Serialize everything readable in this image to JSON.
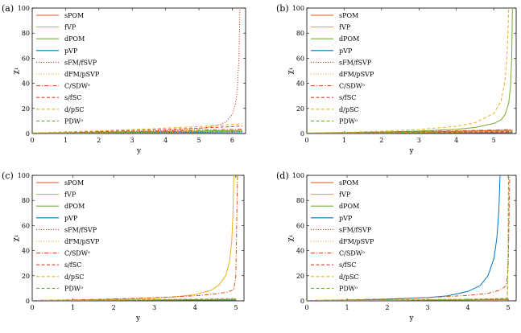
{
  "chart_data": [
    {
      "panel_label": "(a)",
      "type": "line",
      "xlabel": "y",
      "ylabel": "χ₁",
      "xlim": [
        0,
        6.4
      ],
      "ylim": [
        0,
        100
      ],
      "x_ticks": [
        0,
        1,
        2,
        3,
        4,
        5,
        6
      ],
      "y_ticks": [
        0,
        20,
        40,
        60,
        80,
        100
      ],
      "legend_position": "top-left",
      "series": [
        {
          "name": "sPOM",
          "color": "#d95319",
          "dash": "solid",
          "x": [
            0,
            6.3
          ],
          "y": [
            0.3,
            0.3
          ]
        },
        {
          "name": "fVP",
          "color": "#edb120",
          "dash": "solid",
          "x": [
            0,
            1,
            2,
            3,
            4,
            5,
            6,
            6.3
          ],
          "y": [
            0.2,
            0.4,
            0.6,
            0.8,
            1.0,
            1.3,
            1.6,
            1.8
          ]
        },
        {
          "name": "dPOM",
          "color": "#77ac30",
          "dash": "solid",
          "x": [
            0,
            1,
            2,
            3,
            4,
            5,
            6,
            6.3
          ],
          "y": [
            0.2,
            0.5,
            0.9,
            1.2,
            1.6,
            2.0,
            2.4,
            2.6
          ]
        },
        {
          "name": "pVP",
          "color": "#0072bd",
          "dash": "solid",
          "x": [
            0,
            1,
            2,
            3,
            4,
            5,
            6,
            6.3
          ],
          "y": [
            0.2,
            0.3,
            0.5,
            0.6,
            0.8,
            1.0,
            1.2,
            1.3
          ]
        },
        {
          "name": "sFM/fSVP",
          "color": "#e8402a",
          "dash": "dot",
          "x": [
            0,
            1,
            2,
            3,
            4,
            5,
            5.5,
            5.8,
            6.0,
            6.1,
            6.15,
            6.2,
            6.23
          ],
          "y": [
            0.3,
            0.6,
            1.0,
            1.6,
            2.5,
            4.0,
            6.0,
            9.0,
            15,
            24,
            35,
            60,
            100
          ]
        },
        {
          "name": "dFM/pSVP",
          "color": "#edb120",
          "dash": "dot",
          "x": [
            0,
            2,
            4,
            6,
            6.3
          ],
          "y": [
            0.2,
            0.5,
            0.9,
            1.3,
            1.4
          ]
        },
        {
          "name": "C/SDWᵒ",
          "color": "#d95319",
          "dash": "dashdot",
          "x": [
            0,
            1,
            2,
            3,
            4,
            5,
            6,
            6.3
          ],
          "y": [
            0.3,
            0.7,
            1.1,
            1.6,
            2.1,
            2.7,
            3.3,
            3.5
          ]
        },
        {
          "name": "s/fSC",
          "color": "#e8402a",
          "dash": "dash",
          "x": [
            0,
            1,
            2,
            3,
            4,
            5,
            6,
            6.3
          ],
          "y": [
            0.4,
            0.9,
            1.6,
            2.4,
            3.3,
            4.3,
            5.5,
            6.0
          ]
        },
        {
          "name": "d/pSC",
          "color": "#edb120",
          "dash": "dash",
          "x": [
            0,
            1,
            2,
            3,
            4,
            5,
            6,
            6.3
          ],
          "y": [
            0.5,
            1.3,
            2.2,
            3.2,
            4.3,
            5.6,
            7.2,
            7.8
          ]
        },
        {
          "name": "PDWᵒ",
          "color": "#77ac30",
          "dash": "dash",
          "x": [
            0,
            2,
            4,
            6,
            6.3
          ],
          "y": [
            0.3,
            0.8,
            1.4,
            2.0,
            2.2
          ]
        }
      ]
    },
    {
      "panel_label": "(b)",
      "type": "line",
      "xlabel": "y",
      "ylabel": "χ₁",
      "xlim": [
        0,
        5.6
      ],
      "ylim": [
        0,
        100
      ],
      "x_ticks": [
        0,
        1,
        2,
        3,
        4,
        5
      ],
      "y_ticks": [
        0,
        20,
        40,
        60,
        80,
        100
      ],
      "legend_position": "top-left",
      "series": [
        {
          "name": "sPOM",
          "color": "#d95319",
          "dash": "solid",
          "x": [
            0,
            1,
            2,
            3,
            4,
            5,
            5.5
          ],
          "y": [
            0.2,
            0.5,
            0.9,
            1.3,
            1.8,
            2.3,
            2.6
          ]
        },
        {
          "name": "fVP",
          "color": "#edb120",
          "dash": "solid",
          "x": [
            0,
            1,
            2,
            3,
            4,
            5,
            5.5
          ],
          "y": [
            0.2,
            0.4,
            0.7,
            1.0,
            1.3,
            1.6,
            1.8
          ]
        },
        {
          "name": "dPOM",
          "color": "#77ac30",
          "dash": "solid",
          "x": [
            0,
            1,
            2,
            3,
            4,
            4.5,
            5.0,
            5.2,
            5.3,
            5.4,
            5.45,
            5.48,
            5.5
          ],
          "y": [
            0.3,
            0.7,
            1.2,
            2.0,
            3.4,
            4.8,
            8.0,
            11,
            15,
            24,
            38,
            60,
            100
          ]
        },
        {
          "name": "pVP",
          "color": "#0072bd",
          "dash": "solid",
          "x": [
            0,
            2,
            4,
            5.5
          ],
          "y": [
            0.1,
            0.3,
            0.5,
            0.7
          ]
        },
        {
          "name": "sFM/fSVP",
          "color": "#e8402a",
          "dash": "dot",
          "x": [
            0,
            2,
            4,
            5.5
          ],
          "y": [
            0.2,
            0.4,
            0.7,
            1.0
          ]
        },
        {
          "name": "dFM/pSVP",
          "color": "#edb120",
          "dash": "dot",
          "x": [
            0,
            2,
            4,
            5.5
          ],
          "y": [
            0.2,
            0.5,
            0.9,
            1.2
          ]
        },
        {
          "name": "C/SDWᵒ",
          "color": "#d95319",
          "dash": "dashdot",
          "x": [
            0,
            1,
            2,
            3,
            4,
            5,
            5.5
          ],
          "y": [
            0.3,
            0.7,
            1.1,
            1.6,
            2.2,
            2.8,
            3.2
          ]
        },
        {
          "name": "s/fSC",
          "color": "#e8402a",
          "dash": "dash",
          "x": [
            0,
            2,
            4,
            5.5
          ],
          "y": [
            0.2,
            0.6,
            1.0,
            1.3
          ]
        },
        {
          "name": "d/pSC",
          "color": "#edb120",
          "dash": "dash",
          "x": [
            0,
            1,
            2,
            3,
            4,
            4.5,
            5.0,
            5.2,
            5.3,
            5.35,
            5.38,
            5.4
          ],
          "y": [
            0.4,
            1.0,
            1.9,
            3.2,
            5.8,
            8.5,
            16,
            26,
            42,
            60,
            80,
            100
          ]
        },
        {
          "name": "PDWᵒ",
          "color": "#77ac30",
          "dash": "dash",
          "x": [
            0,
            2,
            4,
            5.5
          ],
          "y": [
            0.3,
            0.8,
            1.4,
            1.8
          ]
        }
      ]
    },
    {
      "panel_label": "(c)",
      "type": "line",
      "xlabel": "y",
      "ylabel": "χ₁",
      "xlim": [
        0,
        5.2
      ],
      "ylim": [
        0,
        100
      ],
      "x_ticks": [
        0,
        1,
        2,
        3,
        4,
        5
      ],
      "y_ticks": [
        0,
        20,
        40,
        60,
        80,
        100
      ],
      "legend_position": "top-left",
      "series": [
        {
          "name": "sPOM",
          "color": "#d95319",
          "dash": "solid",
          "x": [
            0,
            2,
            4,
            5.0
          ],
          "y": [
            0.2,
            0.5,
            0.9,
            1.1
          ]
        },
        {
          "name": "fVP",
          "color": "#edb120",
          "dash": "solid",
          "x": [
            0,
            1,
            2,
            3,
            3.5,
            4.0,
            4.4,
            4.6,
            4.75,
            4.85,
            4.9,
            4.93,
            4.95
          ],
          "y": [
            0.2,
            0.6,
            1.2,
            2.2,
            3.2,
            5.0,
            8.5,
            13,
            20,
            32,
            48,
            70,
            100
          ]
        },
        {
          "name": "dPOM",
          "color": "#77ac30",
          "dash": "solid",
          "x": [
            0,
            2,
            4,
            5.0
          ],
          "y": [
            0.2,
            0.5,
            0.9,
            1.1
          ]
        },
        {
          "name": "pVP",
          "color": "#0072bd",
          "dash": "solid",
          "x": [
            0,
            2,
            4,
            5.0
          ],
          "y": [
            0.1,
            0.3,
            0.6,
            0.7
          ]
        },
        {
          "name": "sFM/fSVP",
          "color": "#e8402a",
          "dash": "dot",
          "x": [
            0,
            2,
            4,
            5.0
          ],
          "y": [
            0.2,
            0.5,
            0.9,
            1.2
          ]
        },
        {
          "name": "dFM/pSVP",
          "color": "#edb120",
          "dash": "dot",
          "x": [
            0,
            2,
            4,
            5.0
          ],
          "y": [
            0.2,
            0.5,
            0.8,
            1.0
          ]
        },
        {
          "name": "C/SDWᵒ",
          "color": "#d95319",
          "dash": "dashdot",
          "x": [
            0,
            1,
            2,
            3,
            4,
            4.5,
            4.8,
            4.95,
            5.0,
            5.02,
            5.04
          ],
          "y": [
            0.3,
            0.8,
            1.5,
            2.5,
            4.0,
            5.5,
            7.0,
            9,
            20,
            60,
            100
          ]
        },
        {
          "name": "s/fSC",
          "color": "#e8402a",
          "dash": "dash",
          "x": [
            0,
            2,
            4,
            5.0
          ],
          "y": [
            0.2,
            0.6,
            1.1,
            1.4
          ]
        },
        {
          "name": "d/pSC",
          "color": "#edb120",
          "dash": "dash",
          "x": [
            0,
            2,
            4,
            5.0
          ],
          "y": [
            0.3,
            0.8,
            1.5,
            1.9
          ]
        },
        {
          "name": "PDWᵒ",
          "color": "#77ac30",
          "dash": "dash",
          "x": [
            0,
            2,
            4,
            5.0
          ],
          "y": [
            0.2,
            0.6,
            1.0,
            1.3
          ]
        }
      ]
    },
    {
      "panel_label": "(d)",
      "type": "line",
      "xlabel": "y",
      "ylabel": "χ₁",
      "xlim": [
        0,
        5.2
      ],
      "ylim": [
        0,
        100
      ],
      "x_ticks": [
        0,
        1,
        2,
        3,
        4,
        5
      ],
      "y_ticks": [
        0,
        20,
        40,
        60,
        80,
        100
      ],
      "legend_position": "top-left",
      "series": [
        {
          "name": "sPOM",
          "color": "#d95319",
          "dash": "solid",
          "x": [
            0,
            2,
            4,
            5.0
          ],
          "y": [
            0.2,
            0.5,
            0.9,
            1.1
          ]
        },
        {
          "name": "fVP",
          "color": "#edb120",
          "dash": "solid",
          "x": [
            0,
            2,
            4,
            5.0
          ],
          "y": [
            0.2,
            0.5,
            0.8,
            1.0
          ]
        },
        {
          "name": "dPOM",
          "color": "#77ac30",
          "dash": "solid",
          "x": [
            0,
            2,
            4,
            5.0
          ],
          "y": [
            0.2,
            0.5,
            0.9,
            1.1
          ]
        },
        {
          "name": "pVP",
          "color": "#0072bd",
          "dash": "solid",
          "x": [
            0,
            1,
            2,
            3,
            3.5,
            4.0,
            4.3,
            4.5,
            4.65,
            4.72,
            4.77,
            4.8
          ],
          "y": [
            0.2,
            0.6,
            1.3,
            2.6,
            4.0,
            7.5,
            12,
            20,
            34,
            50,
            72,
            100
          ]
        },
        {
          "name": "sFM/fSVP",
          "color": "#e8402a",
          "dash": "dot",
          "x": [
            0,
            2,
            4,
            5.0
          ],
          "y": [
            0.2,
            0.5,
            0.9,
            1.2
          ]
        },
        {
          "name": "dFM/pSVP",
          "color": "#edb120",
          "dash": "dot",
          "x": [
            0,
            2,
            4,
            4.98,
            5.0,
            5.01
          ],
          "y": [
            0.2,
            0.5,
            0.9,
            2.0,
            40,
            100
          ]
        },
        {
          "name": "C/SDWᵒ",
          "color": "#d95319",
          "dash": "dashdot",
          "x": [
            0,
            1,
            2,
            3,
            4,
            4.5,
            4.8,
            4.95,
            5.0,
            5.02,
            5.04
          ],
          "y": [
            0.3,
            0.8,
            1.5,
            2.6,
            4.3,
            6.0,
            8.5,
            12,
            25,
            60,
            100
          ]
        },
        {
          "name": "s/fSC",
          "color": "#e8402a",
          "dash": "dash",
          "x": [
            0,
            2,
            4,
            5.0
          ],
          "y": [
            0.2,
            0.6,
            1.1,
            1.4
          ]
        },
        {
          "name": "d/pSC",
          "color": "#edb120",
          "dash": "dash",
          "x": [
            0,
            2,
            4,
            5.0
          ],
          "y": [
            0.3,
            0.8,
            1.4,
            1.8
          ]
        },
        {
          "name": "PDWᵒ",
          "color": "#77ac30",
          "dash": "dash",
          "x": [
            0,
            2,
            4,
            4.98,
            5.0,
            5.01
          ],
          "y": [
            0.2,
            0.6,
            1.0,
            2.0,
            40,
            100
          ]
        }
      ]
    }
  ]
}
